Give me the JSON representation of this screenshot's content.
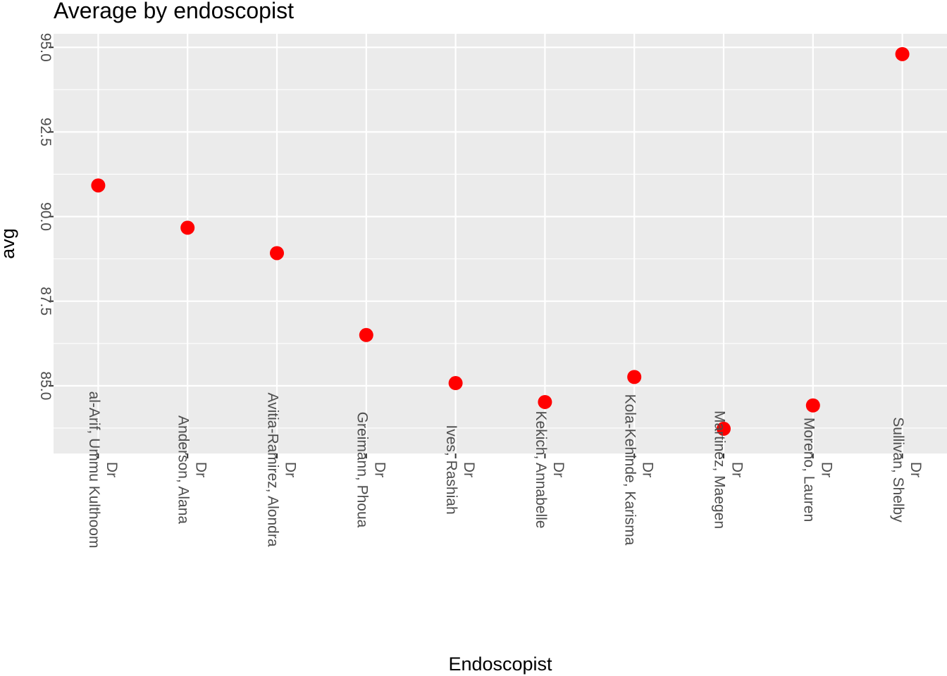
{
  "chart_data": {
    "type": "scatter",
    "title": "Average  by endoscopist",
    "xlabel": "Endoscopist",
    "ylabel": "avg",
    "categories": [
      [
        "Dr",
        "al-Arif, Ummu Kulthoom"
      ],
      [
        "Dr",
        "Anderson, Alana"
      ],
      [
        "Dr",
        "Avitia-Ramirez, Alondra"
      ],
      [
        "Dr",
        "Greimann, Phoua"
      ],
      [
        "Dr",
        "Ives, Rashiah"
      ],
      [
        "Dr",
        "Kekich, Annabelle"
      ],
      [
        "Dr",
        "Kola-Kehinde, Karisma"
      ],
      [
        "Dr",
        "Martinez, Maegen"
      ],
      [
        "Dr",
        "Moreno, Lauren"
      ],
      [
        "Dr",
        "Sullivan, Shelby"
      ]
    ],
    "values": [
      90.92,
      89.67,
      88.92,
      86.5,
      85.08,
      84.52,
      85.26,
      83.73,
      84.42,
      94.8
    ],
    "yticks": [
      85.0,
      87.5,
      90.0,
      92.5,
      95.0
    ],
    "ytick_labels": [
      "85.0",
      "87.5",
      "90.0",
      "92.5",
      "95.0"
    ],
    "ylim": [
      83.0,
      95.4
    ],
    "grid": true,
    "point_color": "#ff0000",
    "panel_color": "#ebebeb",
    "grid_color": "#ffffff"
  }
}
